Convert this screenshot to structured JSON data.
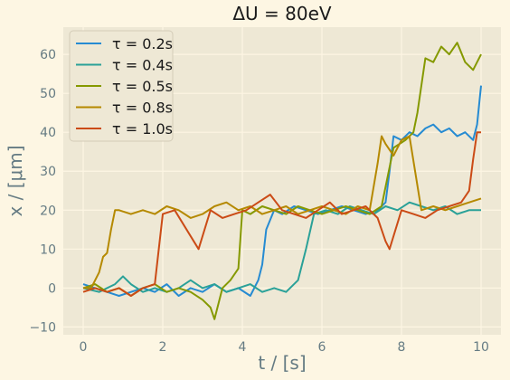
{
  "chart_data": {
    "type": "line",
    "title": "ΔU = 80eV",
    "xlabel": "t / [s]",
    "ylabel": "x / [μm]",
    "xlim": [
      -0.5,
      10.5
    ],
    "ylim": [
      -12,
      67
    ],
    "xticks": [
      "0",
      "2",
      "4",
      "6",
      "8",
      "10"
    ],
    "yticks": [
      "−10",
      "0",
      "10",
      "20",
      "30",
      "40",
      "50",
      "60"
    ],
    "grid": true,
    "legend_position": "top-left",
    "series": [
      {
        "name": "τ = 0.2s",
        "color": "#268bd2",
        "x": [
          0,
          0.3,
          0.6,
          0.9,
          1.2,
          1.5,
          1.8,
          2.1,
          2.4,
          2.7,
          3.0,
          3.3,
          3.6,
          3.9,
          4.2,
          4.4,
          4.5,
          4.6,
          4.8,
          5.0,
          5.3,
          5.6,
          5.9,
          6.2,
          6.5,
          6.8,
          7.1,
          7.4,
          7.6,
          7.7,
          7.8,
          8.0,
          8.2,
          8.4,
          8.6,
          8.8,
          9.0,
          9.2,
          9.4,
          9.6,
          9.8,
          9.9,
          10.0
        ],
        "y": [
          1,
          0,
          -1,
          -2,
          -1,
          0,
          -1,
          1,
          -2,
          0,
          -1,
          1,
          -1,
          0,
          -2,
          2,
          6,
          15,
          20,
          19,
          21,
          20,
          19,
          20,
          21,
          20,
          19,
          20,
          22,
          30,
          39,
          38,
          40,
          39,
          41,
          42,
          40,
          41,
          39,
          40,
          38,
          42,
          52
        ]
      },
      {
        "name": "τ = 0.4s",
        "color": "#2aa198",
        "x": [
          0,
          0.4,
          0.8,
          1.0,
          1.2,
          1.5,
          1.8,
          2.1,
          2.4,
          2.7,
          3.0,
          3.3,
          3.6,
          3.9,
          4.2,
          4.5,
          4.8,
          5.1,
          5.4,
          5.6,
          5.8,
          6.1,
          6.4,
          6.7,
          7.0,
          7.3,
          7.6,
          7.9,
          8.2,
          8.5,
          8.8,
          9.1,
          9.4,
          9.7,
          10.0
        ],
        "y": [
          0,
          -1,
          1,
          3,
          1,
          -1,
          0,
          -1,
          0,
          2,
          0,
          1,
          -1,
          0,
          1,
          -1,
          0,
          -1,
          2,
          10,
          19,
          20,
          19,
          21,
          20,
          19,
          21,
          20,
          22,
          21,
          20,
          21,
          19,
          20,
          20
        ]
      },
      {
        "name": "τ = 0.5s",
        "color": "#859900",
        "x": [
          0,
          0.3,
          0.6,
          0.9,
          1.2,
          1.5,
          1.8,
          2.1,
          2.4,
          2.7,
          3.0,
          3.2,
          3.3,
          3.5,
          3.7,
          3.9,
          4.0,
          4.2,
          4.5,
          4.8,
          5.1,
          5.4,
          5.7,
          6.0,
          6.3,
          6.6,
          6.9,
          7.2,
          7.5,
          7.8,
          8.1,
          8.3,
          8.4,
          8.6,
          8.8,
          9.0,
          9.2,
          9.4,
          9.6,
          9.8,
          10.0
        ],
        "y": [
          0,
          1,
          -1,
          0,
          -2,
          0,
          1,
          -1,
          0,
          -1,
          -3,
          -5,
          -8,
          0,
          2,
          5,
          20,
          19,
          21,
          20,
          19,
          21,
          20,
          19,
          20,
          21,
          20,
          19,
          21,
          36,
          38,
          40,
          45,
          59,
          58,
          62,
          60,
          63,
          58,
          56,
          60
        ]
      },
      {
        "name": "τ = 0.8s",
        "color": "#b58900",
        "x": [
          0,
          0.2,
          0.4,
          0.5,
          0.6,
          0.7,
          0.8,
          0.9,
          1.2,
          1.5,
          1.8,
          2.1,
          2.4,
          2.7,
          3.0,
          3.3,
          3.6,
          3.9,
          4.2,
          4.5,
          4.8,
          5.1,
          5.4,
          5.7,
          6.0,
          6.3,
          6.6,
          6.9,
          7.2,
          7.4,
          7.5,
          7.6,
          7.8,
          8.0,
          8.2,
          8.5,
          8.8,
          9.1,
          9.4,
          9.7,
          10.0
        ],
        "y": [
          0,
          0,
          4,
          8,
          9,
          15,
          20,
          20,
          19,
          20,
          19,
          21,
          20,
          18,
          19,
          21,
          22,
          20,
          21,
          19,
          20,
          21,
          19,
          20,
          21,
          20,
          19,
          21,
          20,
          32,
          39,
          37,
          34,
          38,
          39,
          20,
          21,
          20,
          21,
          22,
          23
        ]
      },
      {
        "name": "τ = 1.0s",
        "color": "#cb4b16",
        "x": [
          0,
          0.3,
          0.6,
          0.9,
          1.2,
          1.5,
          1.8,
          1.9,
          2.0,
          2.3,
          2.6,
          2.9,
          3.2,
          3.5,
          3.8,
          4.1,
          4.4,
          4.7,
          5.0,
          5.3,
          5.6,
          5.9,
          6.2,
          6.5,
          6.8,
          7.1,
          7.4,
          7.6,
          7.7,
          8.0,
          8.3,
          8.6,
          8.9,
          9.2,
          9.5,
          9.7,
          9.8,
          9.9,
          10.0
        ],
        "y": [
          -1,
          0,
          -1,
          0,
          -2,
          0,
          1,
          10,
          19,
          20,
          15,
          10,
          20,
          18,
          19,
          20,
          22,
          24,
          20,
          19,
          18,
          20,
          22,
          19,
          20,
          21,
          18,
          12,
          10,
          20,
          19,
          18,
          20,
          21,
          22,
          25,
          33,
          40,
          40
        ]
      }
    ]
  }
}
